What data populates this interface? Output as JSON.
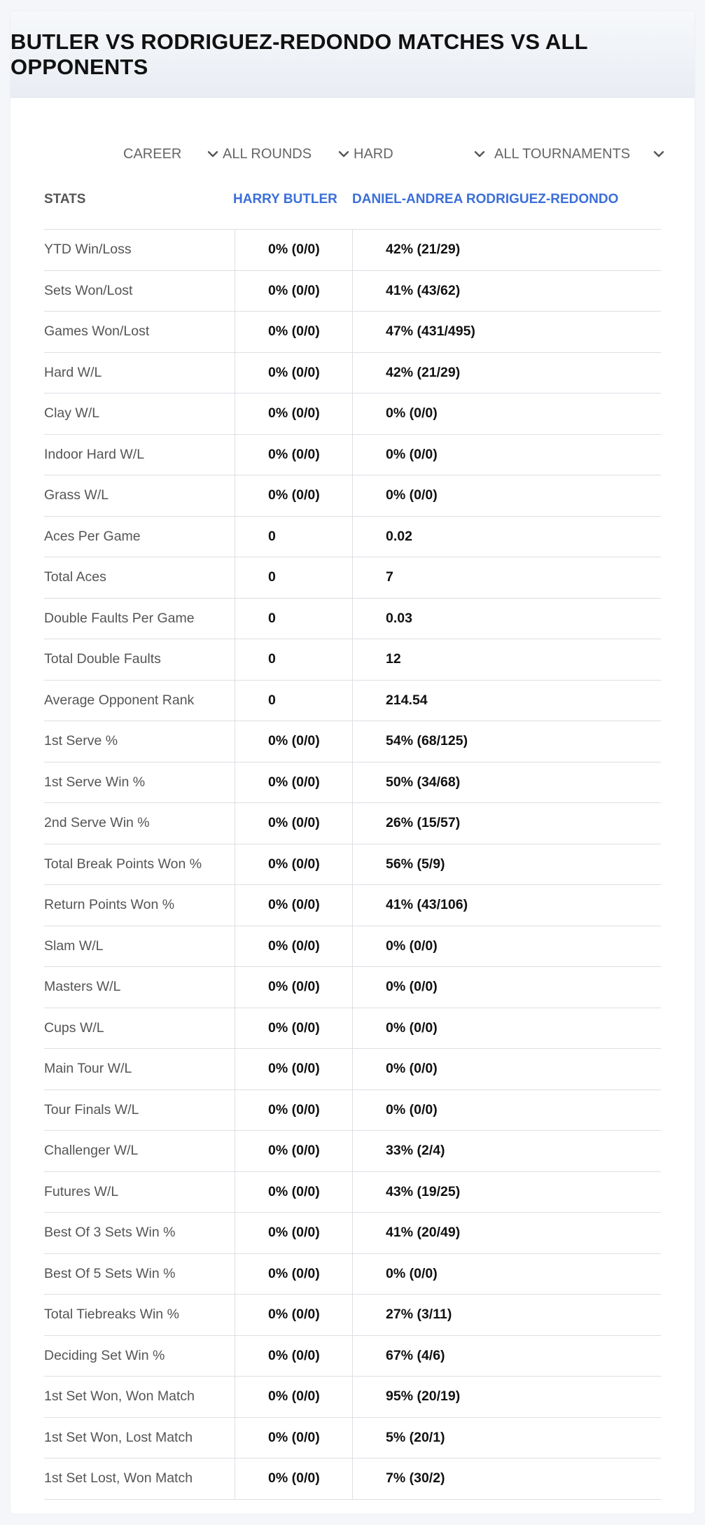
{
  "title": "BUTLER VS RODRIGUEZ-REDONDO MATCHES VS ALL OPPONENTS",
  "filters": [
    {
      "name": "period-select",
      "value": "CAREER"
    },
    {
      "name": "rounds-select",
      "value": "ALL ROUNDS"
    },
    {
      "name": "surface-select",
      "value": "HARD"
    },
    {
      "name": "tournaments-select",
      "value": "ALL TOURNAMENTS"
    }
  ],
  "columns": {
    "stats": "STATS",
    "player1": "HARRY BUTLER",
    "player2": "DANIEL-ANDREA RODRIGUEZ-REDONDO"
  },
  "rows": [
    {
      "stat": "YTD Win/Loss",
      "p1": "0% (0/0)",
      "p2": "42% (21/29)"
    },
    {
      "stat": "Sets Won/Lost",
      "p1": "0% (0/0)",
      "p2": "41% (43/62)"
    },
    {
      "stat": "Games Won/Lost",
      "p1": "0% (0/0)",
      "p2": "47% (431/495)"
    },
    {
      "stat": "Hard W/L",
      "p1": "0% (0/0)",
      "p2": "42% (21/29)"
    },
    {
      "stat": "Clay W/L",
      "p1": "0% (0/0)",
      "p2": "0% (0/0)"
    },
    {
      "stat": "Indoor Hard W/L",
      "p1": "0% (0/0)",
      "p2": "0% (0/0)"
    },
    {
      "stat": "Grass W/L",
      "p1": "0% (0/0)",
      "p2": "0% (0/0)"
    },
    {
      "stat": "Aces Per Game",
      "p1": "0",
      "p2": "0.02"
    },
    {
      "stat": "Total Aces",
      "p1": "0",
      "p2": "7"
    },
    {
      "stat": "Double Faults Per Game",
      "p1": "0",
      "p2": "0.03"
    },
    {
      "stat": "Total Double Faults",
      "p1": "0",
      "p2": "12"
    },
    {
      "stat": "Average Opponent Rank",
      "p1": "0",
      "p2": "214.54"
    },
    {
      "stat": "1st Serve %",
      "p1": "0% (0/0)",
      "p2": "54% (68/125)"
    },
    {
      "stat": "1st Serve Win %",
      "p1": "0% (0/0)",
      "p2": "50% (34/68)"
    },
    {
      "stat": "2nd Serve Win %",
      "p1": "0% (0/0)",
      "p2": "26% (15/57)"
    },
    {
      "stat": "Total Break Points Won %",
      "p1": "0% (0/0)",
      "p2": "56% (5/9)"
    },
    {
      "stat": "Return Points Won %",
      "p1": "0% (0/0)",
      "p2": "41% (43/106)"
    },
    {
      "stat": "Slam W/L",
      "p1": "0% (0/0)",
      "p2": "0% (0/0)"
    },
    {
      "stat": "Masters W/L",
      "p1": "0% (0/0)",
      "p2": "0% (0/0)"
    },
    {
      "stat": "Cups W/L",
      "p1": "0% (0/0)",
      "p2": "0% (0/0)"
    },
    {
      "stat": "Main Tour W/L",
      "p1": "0% (0/0)",
      "p2": "0% (0/0)"
    },
    {
      "stat": "Tour Finals W/L",
      "p1": "0% (0/0)",
      "p2": "0% (0/0)"
    },
    {
      "stat": "Challenger W/L",
      "p1": "0% (0/0)",
      "p2": "33% (2/4)"
    },
    {
      "stat": "Futures W/L",
      "p1": "0% (0/0)",
      "p2": "43% (19/25)"
    },
    {
      "stat": "Best Of 3 Sets Win %",
      "p1": "0% (0/0)",
      "p2": "41% (20/49)"
    },
    {
      "stat": "Best Of 5 Sets Win %",
      "p1": "0% (0/0)",
      "p2": "0% (0/0)"
    },
    {
      "stat": "Total Tiebreaks Win %",
      "p1": "0% (0/0)",
      "p2": "27% (3/11)"
    },
    {
      "stat": "Deciding Set Win %",
      "p1": "0% (0/0)",
      "p2": "67% (4/6)"
    },
    {
      "stat": "1st Set Won, Won Match",
      "p1": "0% (0/0)",
      "p2": "95% (20/19)"
    },
    {
      "stat": "1st Set Won, Lost Match",
      "p1": "0% (0/0)",
      "p2": "5% (20/1)"
    },
    {
      "stat": "1st Set Lost, Won Match",
      "p1": "0% (0/0)",
      "p2": "7% (30/2)"
    }
  ]
}
